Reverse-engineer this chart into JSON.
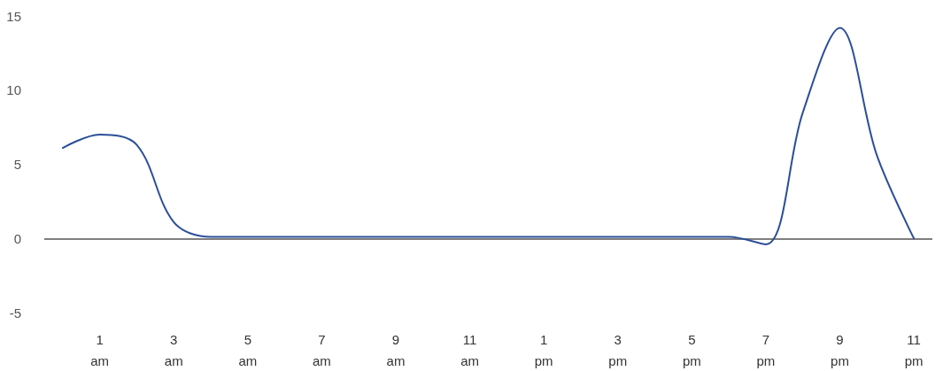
{
  "chart_data": {
    "type": "line",
    "categories": [
      null,
      "1 am",
      null,
      "3 am",
      null,
      "5 am",
      null,
      "7 am",
      null,
      "9 am",
      null,
      "11 am",
      null,
      "1 pm",
      null,
      "3 pm",
      null,
      "5 pm",
      null,
      "7 pm",
      null,
      "9 pm",
      null,
      "11 pm"
    ],
    "series": [
      {
        "color": "#2b4f98",
        "values": [
          6.1,
          7.0,
          6.3,
          1.1,
          0.1,
          0.1,
          0.1,
          0.1,
          0.1,
          0.1,
          0.1,
          0.1,
          0.1,
          0.1,
          0.1,
          0.1,
          0.1,
          0.1,
          0.1,
          -0.4,
          8.5,
          14.2,
          5.6,
          0
        ]
      }
    ],
    "ylim": [
      -5,
      15
    ],
    "yticks": [
      -5,
      0,
      5,
      10,
      15
    ],
    "marker": "none",
    "line_style": "solid",
    "ref_lines": [
      {
        "axis": "y",
        "value": 0,
        "color": "#555555"
      }
    ]
  }
}
